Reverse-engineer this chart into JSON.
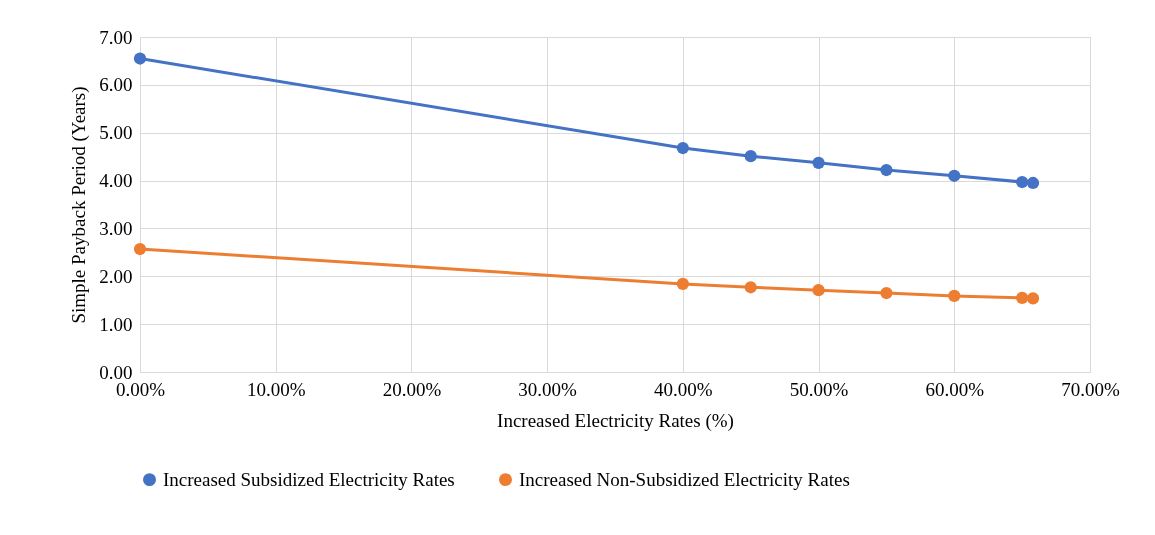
{
  "chart_data": {
    "type": "line",
    "xlabel": "Increased Electricity Rates (%)",
    "ylabel": "Simple Payback Period (Years)",
    "x": [
      0,
      40,
      45,
      50,
      55,
      60,
      65,
      65.8
    ],
    "series": [
      {
        "name": "Increased Subsidized Electricity Rates",
        "color": "#4472c4",
        "values": [
          6.55,
          4.68,
          4.51,
          4.37,
          4.22,
          4.1,
          3.97,
          3.95
        ]
      },
      {
        "name": "Increased Non-Subsidized Electricity Rates",
        "color": "#ed7d31",
        "values": [
          2.57,
          1.84,
          1.77,
          1.71,
          1.65,
          1.59,
          1.55,
          1.54
        ]
      }
    ],
    "xlim": [
      0,
      70
    ],
    "xticks": [
      {
        "value": 0,
        "label": "0.00%"
      },
      {
        "value": 10,
        "label": "10.00%"
      },
      {
        "value": 20,
        "label": "20.00%"
      },
      {
        "value": 30,
        "label": "30.00%"
      },
      {
        "value": 40,
        "label": "40.00%"
      },
      {
        "value": 50,
        "label": "50.00%"
      },
      {
        "value": 60,
        "label": "60.00%"
      },
      {
        "value": 70,
        "label": "70.00%"
      }
    ],
    "ylim": [
      0,
      7
    ],
    "yticks": [
      {
        "value": 0,
        "label": "0.00"
      },
      {
        "value": 1,
        "label": "1.00"
      },
      {
        "value": 2,
        "label": "2.00"
      },
      {
        "value": 3,
        "label": "3.00"
      },
      {
        "value": 4,
        "label": "4.00"
      },
      {
        "value": 5,
        "label": "5.00"
      },
      {
        "value": 6,
        "label": "6.00"
      },
      {
        "value": 7,
        "label": "7.00"
      }
    ],
    "grid": true,
    "legend": "bottom",
    "marker": "circle",
    "line_style": "solid"
  }
}
